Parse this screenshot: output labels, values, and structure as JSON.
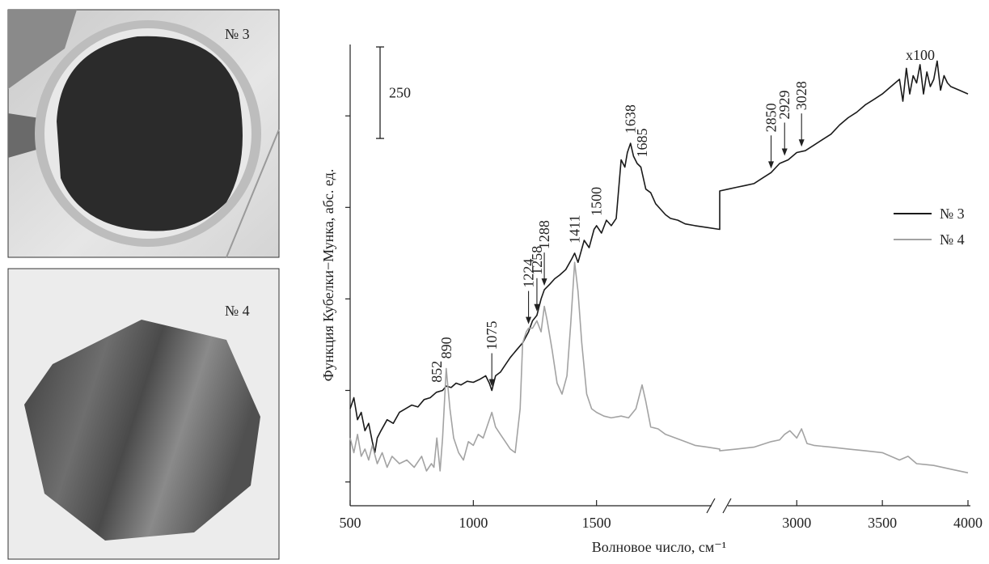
{
  "photos": [
    {
      "label": "№ 3"
    },
    {
      "label": "№ 4"
    }
  ],
  "chart_data": {
    "type": "line",
    "xlabel": "Волновое число, см⁻¹",
    "ylabel": "Функция Кубелки−Мунка, абс. ед.",
    "annotation": "x100",
    "scale_bar": 250,
    "xlim_segments": [
      [
        500,
        2000
      ],
      [
        2550,
        4000
      ]
    ],
    "xticks": [
      500,
      1000,
      1500,
      3000,
      3500,
      4000
    ],
    "ylim": [
      -65,
      1195
    ],
    "yticks": [
      0,
      250,
      500,
      750,
      1000
    ],
    "legend": "right",
    "series": [
      {
        "name": "№ 3",
        "color": "#1a1a1a",
        "x": [
          500,
          515,
          530,
          545,
          560,
          575,
          590,
          600,
          610,
          625,
          650,
          675,
          700,
          725,
          750,
          775,
          800,
          825,
          850,
          875,
          890,
          910,
          930,
          950,
          975,
          1000,
          1025,
          1050,
          1065,
          1075,
          1090,
          1110,
          1130,
          1150,
          1175,
          1200,
          1224,
          1240,
          1258,
          1275,
          1288,
          1310,
          1330,
          1350,
          1375,
          1400,
          1411,
          1425,
          1450,
          1470,
          1490,
          1500,
          1520,
          1540,
          1560,
          1580,
          1600,
          1615,
          1625,
          1638,
          1650,
          1665,
          1680,
          1700,
          1720,
          1740,
          1760,
          1780,
          1800,
          1830,
          1860,
          1900,
          1950,
          2000,
          2550,
          2600,
          2650,
          2700,
          2750,
          2800,
          2850,
          2900,
          2950,
          3000,
          3050,
          3100,
          3150,
          3200,
          3250,
          3300,
          3350,
          3400,
          3450,
          3500,
          3550,
          3600,
          3620,
          3640,
          3660,
          3680,
          3700,
          3720,
          3740,
          3760,
          3780,
          3800,
          3820,
          3840,
          3860,
          3880,
          3900,
          3950,
          4000
        ],
        "values": [
          200,
          230,
          170,
          190,
          140,
          160,
          110,
          80,
          120,
          140,
          170,
          160,
          190,
          200,
          210,
          205,
          225,
          230,
          245,
          250,
          262,
          258,
          270,
          265,
          275,
          272,
          280,
          290,
          270,
          250,
          290,
          300,
          320,
          340,
          360,
          380,
          410,
          440,
          455,
          500,
          525,
          540,
          555,
          565,
          580,
          610,
          625,
          600,
          660,
          640,
          690,
          700,
          680,
          715,
          700,
          720,
          880,
          860,
          900,
          925,
          890,
          870,
          860,
          800,
          790,
          760,
          745,
          730,
          720,
          715,
          705,
          700,
          695,
          690,
          795,
          800,
          805,
          810,
          815,
          830,
          845,
          870,
          880,
          900,
          905,
          920,
          935,
          950,
          975,
          995,
          1010,
          1030,
          1045,
          1060,
          1080,
          1100,
          1040,
          1130,
          1060,
          1110,
          1090,
          1140,
          1060,
          1120,
          1080,
          1100,
          1150,
          1070,
          1110,
          1090,
          1080,
          1070,
          1060
        ]
      },
      {
        "name": "№ 4",
        "color": "#a3a3a3",
        "x": [
          500,
          515,
          530,
          545,
          560,
          575,
          590,
          610,
          630,
          650,
          670,
          700,
          730,
          760,
          790,
          810,
          830,
          840,
          852,
          865,
          875,
          890,
          905,
          920,
          940,
          960,
          980,
          1000,
          1020,
          1040,
          1060,
          1075,
          1090,
          1110,
          1130,
          1150,
          1170,
          1190,
          1200,
          1215,
          1224,
          1240,
          1258,
          1275,
          1288,
          1300,
          1320,
          1340,
          1360,
          1380,
          1395,
          1411,
          1425,
          1440,
          1460,
          1480,
          1500,
          1530,
          1560,
          1600,
          1630,
          1660,
          1685,
          1700,
          1720,
          1750,
          1780,
          1820,
          1860,
          1900,
          1950,
          2000,
          2550,
          2650,
          2750,
          2850,
          2900,
          2929,
          2960,
          3000,
          3028,
          3060,
          3100,
          3200,
          3300,
          3400,
          3500,
          3600,
          3650,
          3700,
          3800,
          3900,
          4000
        ],
        "values": [
          120,
          80,
          130,
          70,
          90,
          60,
          100,
          50,
          80,
          40,
          70,
          50,
          60,
          40,
          70,
          30,
          50,
          40,
          120,
          30,
          120,
          310,
          200,
          120,
          80,
          60,
          110,
          100,
          130,
          120,
          160,
          190,
          150,
          130,
          110,
          90,
          80,
          200,
          380,
          410,
          420,
          420,
          440,
          410,
          480,
          440,
          360,
          270,
          240,
          290,
          430,
          600,
          520,
          380,
          240,
          200,
          190,
          180,
          175,
          180,
          175,
          200,
          265,
          220,
          150,
          145,
          130,
          120,
          110,
          100,
          95,
          90,
          85,
          90,
          95,
          110,
          115,
          130,
          140,
          120,
          145,
          105,
          100,
          95,
          90,
          85,
          80,
          60,
          70,
          50,
          45,
          35,
          25
        ]
      }
    ],
    "peaks": [
      {
        "x": 852
      },
      {
        "x": 890
      },
      {
        "x": 1075,
        "arrow": true
      },
      {
        "x": 1224,
        "arrow": true
      },
      {
        "x": 1258,
        "arrow": true
      },
      {
        "x": 1288,
        "arrow": true
      },
      {
        "x": 1411
      },
      {
        "x": 1500
      },
      {
        "x": 1638
      },
      {
        "x": 1685
      },
      {
        "x": 2850,
        "arrow": true
      },
      {
        "x": 2929,
        "arrow": true
      },
      {
        "x": 3028,
        "arrow": true
      }
    ]
  }
}
